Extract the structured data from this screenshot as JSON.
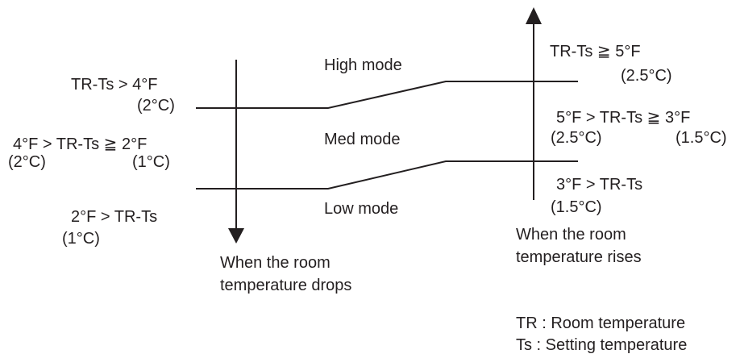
{
  "left_labels": [
    "TR-Ts > 4°F",
    "(2°C)",
    "4°F > TR-Ts ≧ 2°F",
    "(2°C)",
    "(1°C)",
    "2°F > TR-Ts",
    "(1°C)"
  ],
  "modes": [
    "High mode",
    "Med mode",
    "Low mode"
  ],
  "right_labels": [
    "TR-Ts ≧ 5°F",
    "(2.5°C)",
    "5°F > TR-Ts ≧ 3°F",
    "(2.5°C)",
    "(1.5°C)",
    "3°F > TR-Ts",
    "(1.5°C)"
  ],
  "drop_caption": [
    "When the room",
    "temperature drops"
  ],
  "rise_caption": [
    "When the room",
    "temperature rises"
  ],
  "legend": [
    "TR : Room temperature",
    "Ts : Setting temperature"
  ]
}
